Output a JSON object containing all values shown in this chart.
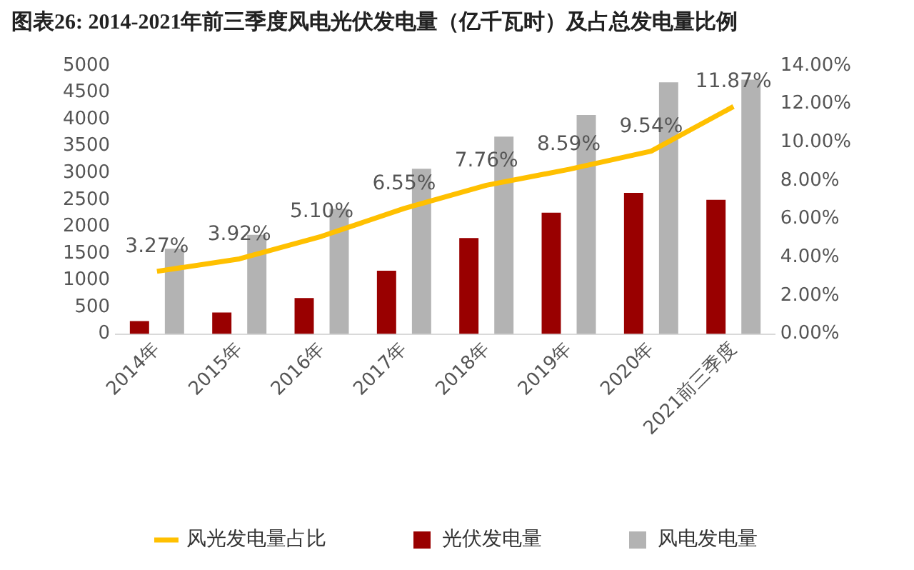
{
  "chart_data": {
    "type": "bar",
    "title": "图表26:  2014-2021年前三季度风电光伏发电量（亿千瓦时）及占总发电量比例",
    "categories": [
      "2014年",
      "2015年",
      "2016年",
      "2017年",
      "2018年",
      "2019年",
      "2020年",
      "2021前三季度"
    ],
    "series": [
      {
        "name": "光伏发电量",
        "color": "#990000",
        "values": [
          240,
          400,
          670,
          1180,
          1790,
          2260,
          2630,
          2500
        ]
      },
      {
        "name": "风电发电量",
        "color": "#b3b3b3",
        "values": [
          1590,
          1850,
          2330,
          3080,
          3680,
          4080,
          4690,
          4740
        ]
      },
      {
        "name": "风光发电量占比",
        "type": "line",
        "axis": "y2",
        "color": "#ffc000",
        "values": [
          3.27,
          3.92,
          5.1,
          6.55,
          7.76,
          8.59,
          9.54,
          11.87
        ],
        "value_labels": [
          "3.27%",
          "3.92%",
          "5.10%",
          "6.55%",
          "7.76%",
          "8.59%",
          "9.54%",
          "11.87%"
        ]
      }
    ],
    "ylim": [
      0,
      5000
    ],
    "yticks": [
      0,
      500,
      1000,
      1500,
      2000,
      2500,
      3000,
      3500,
      4000,
      4500,
      5000
    ],
    "y2lim": [
      0,
      14
    ],
    "y2ticks": [
      {
        "value": 0,
        "label": "0.00%"
      },
      {
        "value": 2,
        "label": "2.00%"
      },
      {
        "value": 4,
        "label": "4.00%"
      },
      {
        "value": 6,
        "label": "6.00%"
      },
      {
        "value": 8,
        "label": "8.00%"
      },
      {
        "value": 10,
        "label": "10.00%"
      },
      {
        "value": 12,
        "label": "12.00%"
      },
      {
        "value": 14,
        "label": "14.00%"
      }
    ],
    "grid": false,
    "legend": "bottom",
    "marker": "none"
  }
}
